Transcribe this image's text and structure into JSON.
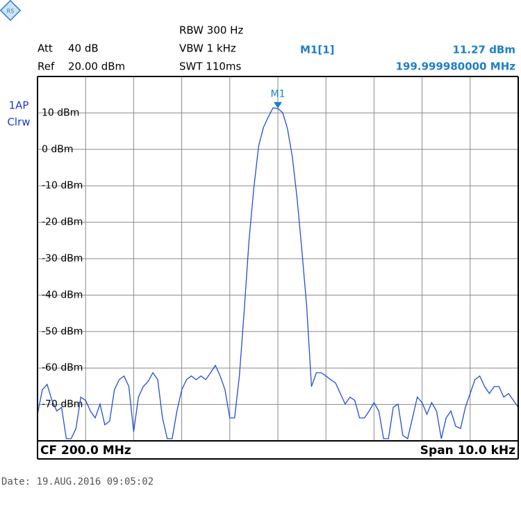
{
  "chart_data": {
    "type": "line",
    "settings": {
      "att_label": "Att",
      "att": "40 dB",
      "ref_label": "Ref",
      "ref": "20.00 dBm",
      "rbw": "RBW 300 Hz",
      "vbw": "VBW 1 kHz",
      "swt": "SWT 110ms"
    },
    "trace_label": [
      "1AP",
      "Clrw"
    ],
    "marker": {
      "label": "M1",
      "name": "M1[1]",
      "value": 11.27,
      "value_label": "11.27 dBm",
      "frequency_label": "199.999980000 MHz"
    },
    "center_label": "CF 200.0 MHz",
    "span_label": "Span 10.0 kHz",
    "date": "Date: 19.AUG.2016  09:05:02",
    "ylim": [
      -80,
      20
    ],
    "yticks": [
      {
        "value": 10,
        "label": "10 dBm"
      },
      {
        "value": 0,
        "label": "0 dBm"
      },
      {
        "value": -10,
        "label": "-10 dBm"
      },
      {
        "value": -20,
        "label": "-20 dBm"
      },
      {
        "value": -30,
        "label": "-30 dBm"
      },
      {
        "value": -40,
        "label": "-40 dBm"
      },
      {
        "value": -50,
        "label": "-50 dBm"
      },
      {
        "value": -60,
        "label": "-60 dBm"
      },
      {
        "value": -70,
        "label": "-70 dBm"
      }
    ],
    "grid": true,
    "series": [
      {
        "name": "1AP",
        "color": "#1f4fd6",
        "values": [
          -72.7,
          -66.0,
          -64.5,
          -68.9,
          -71.8,
          -70.8,
          -79.4,
          -79.4,
          -76.6,
          -68.0,
          -68.9,
          -71.8,
          -73.7,
          -69.9,
          -75.6,
          -74.6,
          -66.0,
          -63.2,
          -62.2,
          -65.1,
          -77.5,
          -68.0,
          -65.1,
          -63.7,
          -61.3,
          -63.2,
          -73.7,
          -79.4,
          -79.4,
          -71.8,
          -66.0,
          -63.2,
          -62.2,
          -63.2,
          -62.2,
          -63.2,
          -61.3,
          -59.3,
          -62.2,
          -66.0,
          -73.7,
          -73.7,
          -62.2,
          -44.1,
          -24.9,
          -10.6,
          0.9,
          6.0,
          8.9,
          11.4,
          11.2,
          10.1,
          5.7,
          -2.0,
          -13.5,
          -27.8,
          -43.1,
          -65.1,
          -61.3,
          -61.3,
          -62.2,
          -63.2,
          -64.1,
          -67.0,
          -69.9,
          -68.0,
          -68.9,
          -73.7,
          -73.7,
          -71.8,
          -69.5,
          -71.8,
          -79.4,
          -79.4,
          -70.8,
          -69.9,
          -78.5,
          -79.4,
          -73.7,
          -68.0,
          -69.5,
          -72.7,
          -69.5,
          -71.8,
          -79.4,
          -73.7,
          -71.8,
          -76.0,
          -76.6,
          -70.8,
          -67.0,
          -63.2,
          -62.2,
          -65.1,
          -67.0,
          -65.1,
          -65.1,
          -68.0,
          -67.0,
          -68.9,
          -70.8
        ]
      }
    ]
  }
}
